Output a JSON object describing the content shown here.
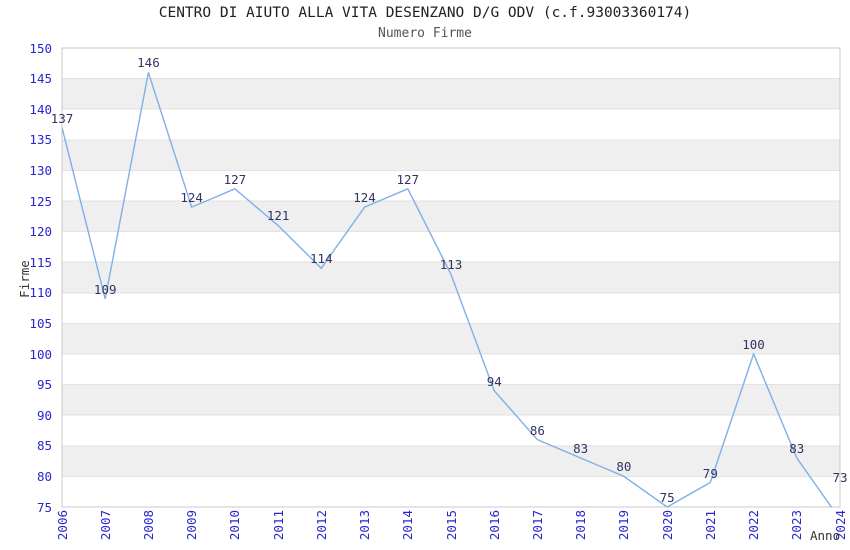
{
  "chart_data": {
    "type": "line",
    "title": "CENTRO DI AIUTO ALLA VITA DESENZANO D/G ODV (c.f.93003360174)",
    "subtitle": "Numero Firme",
    "xlabel": "Anno",
    "ylabel": "Firme",
    "categories": [
      "2006",
      "2007",
      "2008",
      "2009",
      "2010",
      "2011",
      "2012",
      "2013",
      "2014",
      "2015",
      "2016",
      "2017",
      "2018",
      "2019",
      "2020",
      "2021",
      "2022",
      "2023",
      "2024"
    ],
    "values": [
      137,
      109,
      146,
      124,
      127,
      121,
      114,
      124,
      127,
      113,
      94,
      86,
      83,
      80,
      75,
      79,
      100,
      83,
      73
    ],
    "ylim": [
      75,
      150
    ],
    "ytick_step": 5,
    "grid": true,
    "legend": "none",
    "data_labels": true
  },
  "colors": {
    "line": "#7fb0e6",
    "tick_label": "#2727cc",
    "data_label": "#333366",
    "band_fill": "#efefef",
    "gridline": "#e2e2e2",
    "plot_border": "#c8c8c8",
    "title": "#222222",
    "subtitle": "#555555",
    "axis_title": "#333333"
  }
}
